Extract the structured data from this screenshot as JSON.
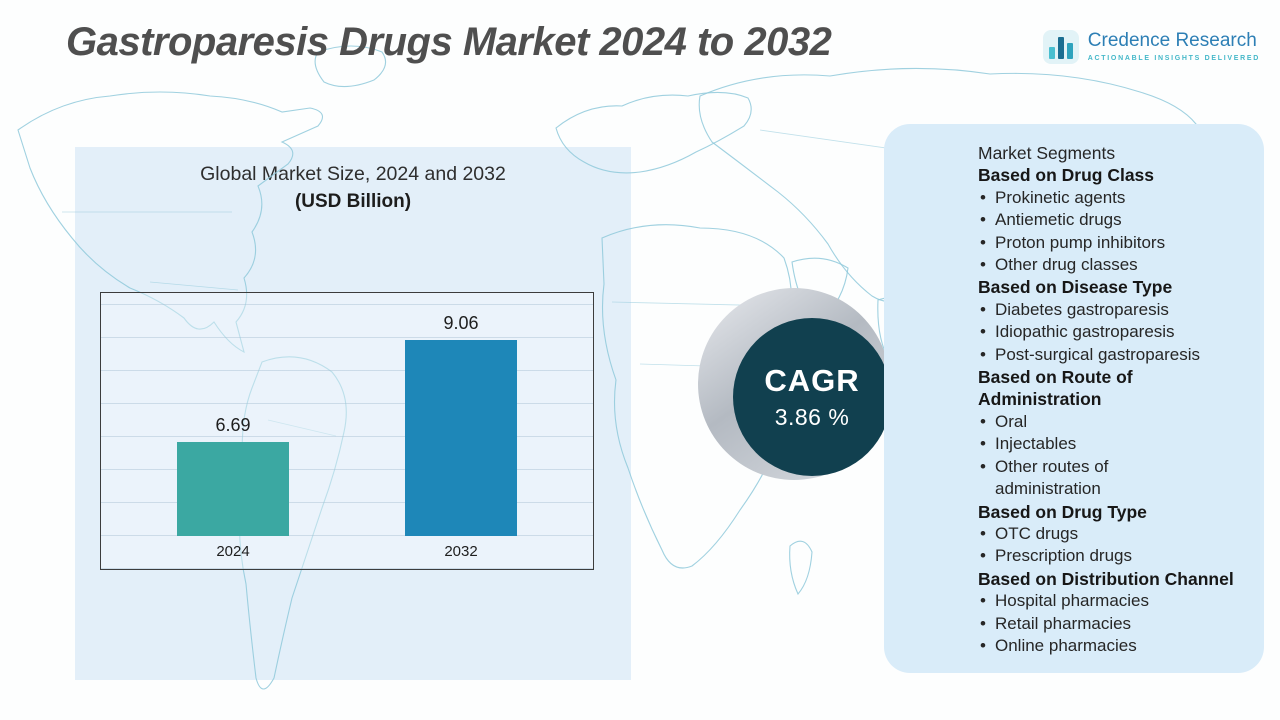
{
  "header": {
    "title": "Gastroparesis Drugs Market 2024 to 2032"
  },
  "logo": {
    "name": "Credence Research",
    "tagline": "Actionable Insights Delivered"
  },
  "chart_data": {
    "type": "bar",
    "title": "Global Market Size, 2024 and 2032",
    "subtitle": "(USD Billion)",
    "categories": [
      "2024",
      "2032"
    ],
    "values": [
      6.69,
      9.06
    ],
    "bar_colors": [
      "#3ba8a2",
      "#1e87b8"
    ],
    "ylim": [
      4.5,
      9.5
    ],
    "grid": true,
    "legend": "none"
  },
  "cagr": {
    "label": "CAGR",
    "value": "3.86 %"
  },
  "segments": {
    "title": "Market Segments",
    "groups": [
      {
        "heading": "Based on Drug Class",
        "items": [
          "Prokinetic agents",
          "Antiemetic drugs",
          "Proton pump inhibitors",
          "Other drug classes"
        ]
      },
      {
        "heading": "Based on Disease Type",
        "items": [
          "Diabetes gastroparesis",
          "Idiopathic gastroparesis",
          "Post-surgical gastroparesis"
        ]
      },
      {
        "heading": "Based on Route of Administration",
        "items": [
          "Oral",
          "Injectables",
          "Other routes of administration"
        ]
      },
      {
        "heading": "Based on Drug Type",
        "items": [
          "OTC drugs",
          "Prescription drugs"
        ]
      },
      {
        "heading": "Based on Distribution Channel",
        "items": [
          "Hospital pharmacies",
          "Retail pharmacies",
          "Online pharmacies"
        ]
      }
    ]
  },
  "colors": {
    "title_color": "#4f4f4f",
    "cagr_circle": "#11404f",
    "panel_bg": "#d9ecf9",
    "left_panel_bg": "#e3eff9",
    "map_line": "#8fc9db",
    "logo_blue": "#2d7fb5",
    "logo_teal": "#45b8c9"
  }
}
